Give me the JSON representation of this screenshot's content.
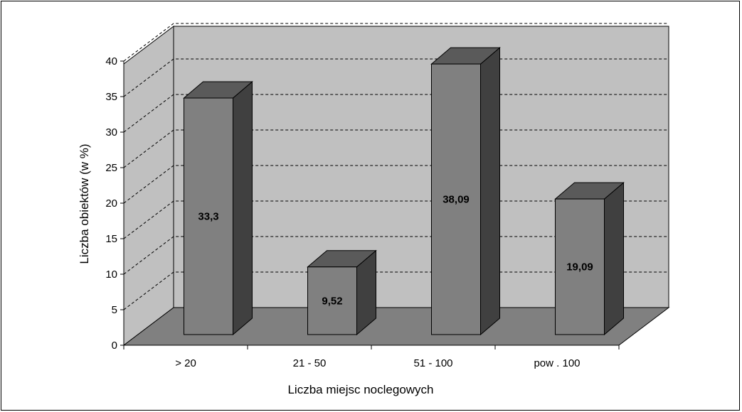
{
  "chart_data": {
    "type": "bar",
    "style": "3d-column",
    "categories": [
      "> 20",
      "21 - 50",
      "51 - 100",
      "pow . 100"
    ],
    "values": [
      33.3,
      9.52,
      38.09,
      19.09
    ],
    "value_labels": [
      "33,3",
      "9,52",
      "38,09",
      "19,09"
    ],
    "title": "",
    "xlabel": "Liczba miejsc noclegowych",
    "ylabel": "Liczba obiektów (w %)",
    "ylim": [
      0,
      40
    ],
    "yticks": [
      0,
      5,
      10,
      15,
      20,
      25,
      30,
      35,
      40
    ],
    "grid": "dashed-horizontal",
    "legend": "none",
    "colors": {
      "wall": "#c0c0c0",
      "floor": "#808080",
      "bar_front": "#808080",
      "bar_top": "#5a5a5a",
      "bar_side": "#404040"
    }
  }
}
